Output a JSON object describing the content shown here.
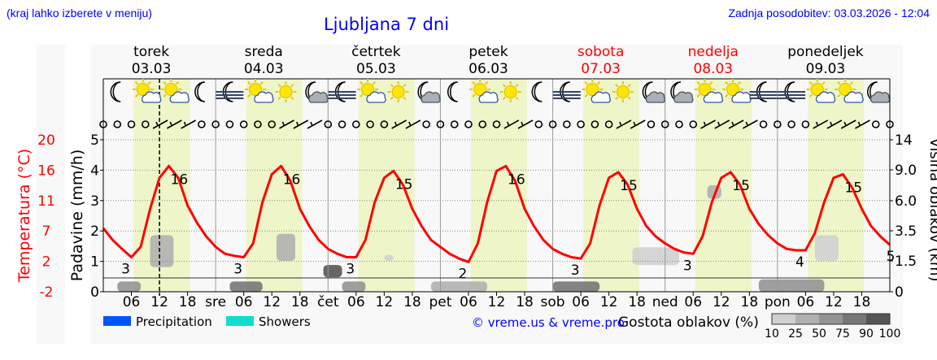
{
  "header": {
    "hint": "(kraj lahko izberete v meniju)",
    "title": "Ljubljana 7 dni",
    "updated": "Zadnja posodobitev: 03.03.2026 - 12:04"
  },
  "colors": {
    "temperature": "#ff0000",
    "daylight": "#eef5c8",
    "weekend": "#ff0000",
    "text_link": "#0000ff",
    "precipitation": "#0055ff",
    "showers": "#11ddcc"
  },
  "chart_data": {
    "type": "line",
    "days": [
      {
        "name": "torek",
        "date": "03.03",
        "abbr": "",
        "weekend": false,
        "icons": [
          "moon",
          "sun-cloud",
          "sun-cloud",
          "moon"
        ],
        "wind": [
          "calm",
          "calm",
          "calm",
          "calm",
          "wind",
          "wind",
          "wind",
          "calm"
        ]
      },
      {
        "name": "sreda",
        "date": "04.03",
        "abbr": "sre",
        "weekend": false,
        "icons": [
          "fog-moon",
          "sun-cloud",
          "sun",
          "moon-cloud"
        ],
        "wind": [
          "calm",
          "calm",
          "calm",
          "calm",
          "calm",
          "wind",
          "wind",
          "wind"
        ]
      },
      {
        "name": "četrtek",
        "date": "05.03",
        "abbr": "čet",
        "weekend": false,
        "icons": [
          "fog-moon",
          "sun-cloud",
          "sun",
          "moon-cloud"
        ],
        "wind": [
          "calm",
          "calm",
          "calm",
          "calm",
          "calm",
          "wind",
          "wind",
          "calm"
        ]
      },
      {
        "name": "petek",
        "date": "06.03",
        "abbr": "pet",
        "weekend": false,
        "icons": [
          "moon",
          "sun-cloud",
          "sun",
          "moon"
        ],
        "wind": [
          "calm",
          "calm",
          "calm",
          "calm",
          "calm",
          "wind",
          "wind",
          "calm"
        ]
      },
      {
        "name": "sobota",
        "date": "07.03",
        "abbr": "sob",
        "weekend": true,
        "icons": [
          "fog-moon",
          "sun-cloud",
          "sun",
          "moon-cloud"
        ],
        "wind": [
          "calm",
          "calm",
          "calm",
          "calm",
          "calm",
          "wind",
          "wind",
          "calm"
        ]
      },
      {
        "name": "nedelja",
        "date": "08.03",
        "abbr": "ned",
        "weekend": true,
        "icons": [
          "moon-cloud",
          "sun-cloud",
          "sun-cloud",
          "fog-moon"
        ],
        "wind": [
          "calm",
          "calm",
          "calm",
          "wind",
          "wind",
          "wind",
          "wind",
          "calm"
        ]
      },
      {
        "name": "ponedeljek",
        "date": "09.03",
        "abbr": "pon",
        "weekend": false,
        "icons": [
          "fog-moon",
          "sun-cloud",
          "sun-cloud",
          "moon-cloud"
        ],
        "wind": [
          "calm",
          "calm",
          "calm",
          "wind",
          "wind",
          "wind",
          "wind",
          "calm"
        ]
      }
    ],
    "hour_ticks": [
      "06",
      "12",
      "18"
    ],
    "temperature_axis": {
      "label": "Temperatura (°C)",
      "ticks": [
        "20",
        "16",
        "11",
        "7",
        "2",
        "-2"
      ],
      "range": [
        -2,
        20
      ]
    },
    "precip_axis": {
      "label": "Padavine (mm/h)",
      "ticks": [
        "0",
        "1",
        "2",
        "3",
        "4",
        "5"
      ],
      "range": [
        0,
        5
      ]
    },
    "cloud_axis": {
      "label": "Višina oblakov (km)",
      "ticks": [
        "0",
        "1.5",
        "3.5",
        "6.0",
        "9.0",
        "14"
      ]
    },
    "temperature_hours_step": 2,
    "temperature": [
      7.2,
      5.5,
      4.2,
      3.0,
      4.5,
      10,
      14.5,
      16.2,
      14.5,
      10.5,
      8,
      6,
      4.5,
      3.5,
      3.2,
      3.0,
      5,
      11,
      15,
      16.2,
      14,
      10,
      7.5,
      5.5,
      4.2,
      3.5,
      3.0,
      3.0,
      5.5,
      11,
      14.5,
      15.5,
      13.5,
      10,
      7.5,
      5.5,
      4.5,
      3.5,
      2.8,
      2.3,
      5,
      11,
      15.5,
      16.2,
      14,
      10,
      7.5,
      5.5,
      4.2,
      3.5,
      3.0,
      2.8,
      5,
      10.5,
      14.5,
      15.3,
      13.5,
      10,
      7.5,
      6,
      5,
      4.2,
      3.7,
      3.5,
      6,
      11,
      14.5,
      15.3,
      13.5,
      10,
      7.8,
      6.2,
      5,
      4.2,
      4.0,
      4.0,
      6.5,
      11,
      14.5,
      15,
      13,
      10,
      7.5,
      6,
      4.8
    ],
    "temperature_labels": [
      {
        "hour": 6,
        "text": "3"
      },
      {
        "hour": 14,
        "text": "16"
      },
      {
        "hour": 30,
        "text": "3"
      },
      {
        "hour": 38,
        "text": "16"
      },
      {
        "hour": 54,
        "text": "3"
      },
      {
        "hour": 62,
        "text": "15"
      },
      {
        "hour": 78,
        "text": "2"
      },
      {
        "hour": 86,
        "text": "16"
      },
      {
        "hour": 102,
        "text": "3"
      },
      {
        "hour": 110,
        "text": "15"
      },
      {
        "hour": 126,
        "text": "3"
      },
      {
        "hour": 134,
        "text": "15"
      },
      {
        "hour": 150,
        "text": "4"
      },
      {
        "hour": 158,
        "text": "15"
      },
      {
        "hour": 168,
        "text": "5"
      }
    ],
    "cloud_patches": [
      {
        "from": 10,
        "to": 15,
        "low_km": 1.2,
        "high_km": 3.2,
        "density": 50
      },
      {
        "from": 37,
        "to": 41,
        "low_km": 1.5,
        "high_km": 3.3,
        "density": 50
      },
      {
        "from": 60,
        "to": 62,
        "low_km": 1.5,
        "high_km": 1.9,
        "density": 25
      },
      {
        "from": 47,
        "to": 51,
        "low_km": 0.7,
        "high_km": 1.3,
        "density": 100
      },
      {
        "from": 3,
        "to": 8,
        "low_km": 0,
        "high_km": 0.5,
        "density": 75
      },
      {
        "from": 27,
        "to": 34,
        "low_km": 0,
        "high_km": 0.5,
        "density": 90
      },
      {
        "from": 51,
        "to": 56,
        "low_km": 0,
        "high_km": 0.5,
        "density": 75
      },
      {
        "from": 70,
        "to": 82,
        "low_km": 0,
        "high_km": 0.5,
        "density": 50
      },
      {
        "from": 96,
        "to": 106,
        "low_km": 0,
        "high_km": 0.5,
        "density": 90
      },
      {
        "from": 113,
        "to": 123,
        "low_km": 1.3,
        "high_km": 2.4,
        "density": 25
      },
      {
        "from": 129,
        "to": 132,
        "low_km": 6.2,
        "high_km": 7.5,
        "density": 50
      },
      {
        "from": 140,
        "to": 154,
        "low_km": 0,
        "high_km": 0.6,
        "density": 75
      },
      {
        "from": 152,
        "to": 157,
        "low_km": 1.5,
        "high_km": 3.2,
        "density": 25
      }
    ],
    "current_time_hour": 12,
    "legend": [
      {
        "label": "Precipitation",
        "color": "#0055ff"
      },
      {
        "label": "Showers",
        "color": "#11ddcc"
      }
    ],
    "cloud_scale": {
      "title": "Gostota oblakov (%)",
      "ticks": [
        "10",
        "25",
        "50",
        "75",
        "90",
        "100"
      ],
      "colors": [
        "#d0d0d0",
        "#b0b0b0",
        "#939393",
        "#777777",
        "#555555"
      ]
    },
    "copyright": "© vreme.us & vreme.pro"
  }
}
